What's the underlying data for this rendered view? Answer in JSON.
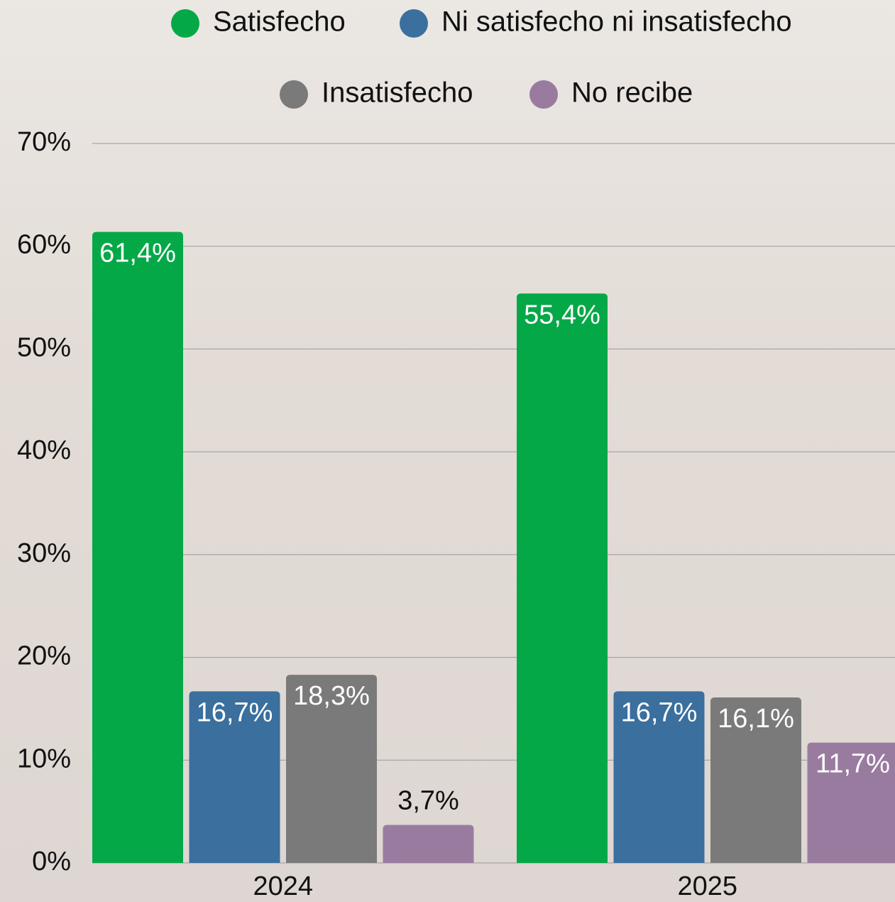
{
  "chart_data": {
    "type": "bar",
    "categories": [
      "2024",
      "2025"
    ],
    "series": [
      {
        "name": "Satisfecho",
        "color": "#05a847",
        "values": [
          61.4,
          55.4
        ],
        "value_labels": [
          "61,4%",
          "55,4%"
        ]
      },
      {
        "name": "Ni satisfecho ni insatisfecho",
        "color": "#3a6f9e",
        "values": [
          16.7,
          16.7
        ],
        "value_labels": [
          "16,7%",
          "16,7%"
        ]
      },
      {
        "name": "Insatisfecho",
        "color": "#7a7a7a",
        "values": [
          18.3,
          16.1
        ],
        "value_labels": [
          "18,3%",
          "16,1%"
        ]
      },
      {
        "name": "No recibe",
        "color": "#9a7ba0",
        "values": [
          3.7,
          11.7
        ],
        "value_labels": [
          "3,7%",
          "11,7%"
        ]
      }
    ],
    "ylim": [
      0,
      70
    ],
    "yticks": [
      {
        "value": 0,
        "label": "0%"
      },
      {
        "value": 10,
        "label": "10%"
      },
      {
        "value": 20,
        "label": "20%"
      },
      {
        "value": 30,
        "label": "30%"
      },
      {
        "value": 40,
        "label": "40%"
      },
      {
        "value": 50,
        "label": "50%"
      },
      {
        "value": 60,
        "label": "60%"
      },
      {
        "value": 70,
        "label": "70%"
      }
    ],
    "grid": true
  }
}
